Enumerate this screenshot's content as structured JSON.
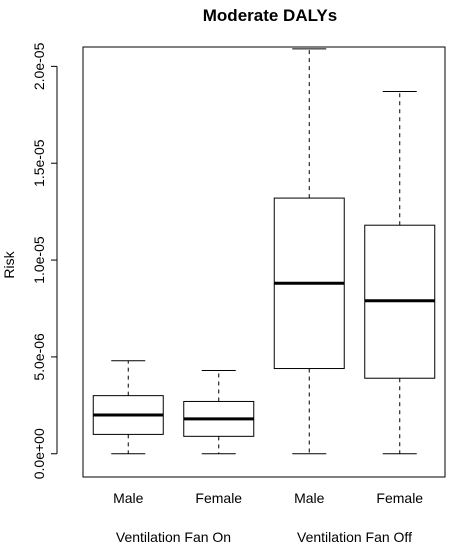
{
  "chart_data": {
    "type": "box",
    "title": "Moderate DALYs",
    "ylabel": "Risk",
    "ylim": [
      -1.2e-06,
      2.1e-05
    ],
    "y_ticks": [
      0,
      5e-06,
      1e-05,
      1.5e-05,
      2e-05
    ],
    "y_tick_labels": [
      "0.0e+00",
      "5.0e-06",
      "1.0e-05",
      "1.5e-05",
      "2.0e-05"
    ],
    "categories": [
      "Male",
      "Female",
      "Male",
      "Female"
    ],
    "groups": [
      {
        "label": "Ventilation Fan On",
        "categories": [
          0,
          1
        ]
      },
      {
        "label": "Ventilation Fan Off",
        "categories": [
          2,
          3
        ]
      }
    ],
    "boxes": [
      {
        "category": "Male",
        "min": 0,
        "q1": 1e-06,
        "median": 2e-06,
        "q3": 3e-06,
        "max": 4.8e-06
      },
      {
        "category": "Female",
        "min": 0,
        "q1": 9e-07,
        "median": 1.8e-06,
        "q3": 2.7e-06,
        "max": 4.3e-06
      },
      {
        "category": "Male",
        "min": 0,
        "q1": 4.4e-06,
        "median": 8.8e-06,
        "q3": 1.32e-05,
        "max": 2.09e-05
      },
      {
        "category": "Female",
        "min": 0,
        "q1": 3.9e-06,
        "median": 7.9e-06,
        "q3": 1.18e-05,
        "max": 1.87e-05
      }
    ],
    "colors": {
      "box_fill": "#ffffff",
      "stroke": "#000000"
    }
  }
}
